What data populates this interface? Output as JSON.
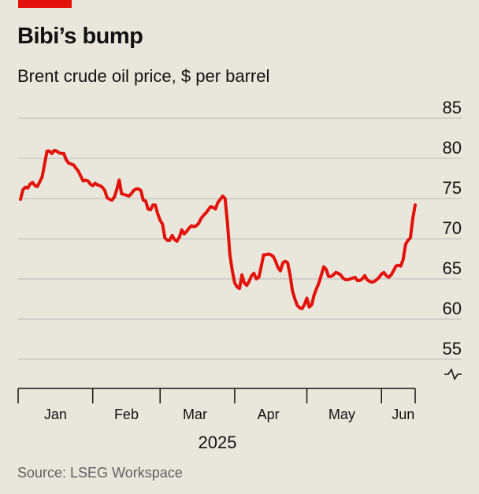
{
  "title": "Bibi’s bump",
  "subtitle": "Brent crude oil price, $ per barrel",
  "source": "Source: LSEG Workspace",
  "colors": {
    "line": "#e3120b",
    "accent": "#e3120b",
    "grid": "#b7b7b7",
    "axis": "#121212",
    "background": "#e9e7dc"
  },
  "chart_data": {
    "type": "line",
    "title": "Bibi’s bump",
    "subtitle": "Brent crude oil price, $ per barrel",
    "ylim": [
      55,
      85
    ],
    "yticks": [
      55,
      60,
      65,
      70,
      75,
      80,
      85
    ],
    "ytick_labels": [
      "55",
      "60",
      "65",
      "70",
      "75",
      "80",
      "85"
    ],
    "y_axis_side": "right",
    "y_axis_break": true,
    "x_year_label": "2025",
    "x_month_labels": [
      "Jan",
      "Feb",
      "Mar",
      "Apr",
      "May",
      "Jun"
    ],
    "x_month_label_days": [
      15.5,
      45,
      73.5,
      104,
      134.5,
      160
    ],
    "x_month_tick_days": [
      0,
      31,
      59,
      90,
      120,
      151,
      165
    ],
    "grid": true,
    "series": [
      {
        "x": [
          1,
          2,
          3,
          4,
          5,
          6,
          7,
          8,
          9,
          10,
          11,
          12,
          13,
          14,
          15,
          16,
          17,
          18,
          19,
          20,
          21,
          22,
          23,
          24,
          25,
          26,
          27,
          28,
          29,
          30,
          31,
          32,
          33,
          34,
          35,
          36,
          37,
          38,
          39,
          40,
          41,
          42,
          43,
          44,
          45,
          46,
          47,
          48,
          49,
          50,
          51,
          52,
          53,
          54,
          55,
          56,
          57,
          58,
          59,
          60,
          61,
          62,
          63,
          64,
          65,
          66,
          67,
          68,
          69,
          70,
          71,
          72,
          73,
          74,
          75,
          76,
          77,
          78,
          79,
          80,
          81,
          82,
          83,
          84,
          85,
          86,
          87,
          88,
          89,
          90,
          91,
          92,
          93,
          94,
          95,
          96,
          97,
          98,
          99,
          100,
          101,
          102,
          103,
          104,
          105,
          106,
          107,
          108,
          109,
          110,
          111,
          112,
          113,
          114,
          115,
          116,
          117,
          118,
          119,
          120,
          121,
          122,
          123,
          124,
          125,
          126,
          127,
          128,
          129,
          130,
          131,
          132,
          133,
          134,
          135,
          136,
          137,
          138,
          139,
          140,
          141,
          142,
          143,
          144,
          145,
          146,
          147,
          148,
          149,
          150,
          151,
          152,
          153,
          154,
          155,
          156,
          157,
          158,
          159,
          160,
          161,
          162,
          163,
          164,
          165
        ],
        "y": [
          74.9,
          76.1,
          76.4,
          76.3,
          76.8,
          77.0,
          76.6,
          76.5,
          77.1,
          77.7,
          79.3,
          80.9,
          80.9,
          80.6,
          81.0,
          80.9,
          80.7,
          80.6,
          80.6,
          79.8,
          79.4,
          79.3,
          79.2,
          78.8,
          78.4,
          77.8,
          77.2,
          77.3,
          77.2,
          76.8,
          76.6,
          76.9,
          76.7,
          76.6,
          76.4,
          76.0,
          75.1,
          74.9,
          74.8,
          75.2,
          76.1,
          77.3,
          75.6,
          75.5,
          75.4,
          75.3,
          75.6,
          76.0,
          76.2,
          76.2,
          76.0,
          74.8,
          74.7,
          73.7,
          73.6,
          74.2,
          74.2,
          73.1,
          72.3,
          71.8,
          70.1,
          69.8,
          69.8,
          70.4,
          69.9,
          69.7,
          70.2,
          71.1,
          70.6,
          70.9,
          71.3,
          71.6,
          71.5,
          71.6,
          71.9,
          72.5,
          72.9,
          73.2,
          73.6,
          74.0,
          73.9,
          73.7,
          74.5,
          74.9,
          75.3,
          75.0,
          72.0,
          68.0,
          66.0,
          64.5,
          64.0,
          63.8,
          65.5,
          64.5,
          64.2,
          64.7,
          65.4,
          65.7,
          65.0,
          65.2,
          66.5,
          68.0,
          68.0,
          68.1,
          68.0,
          67.8,
          67.2,
          66.4,
          66.0,
          67.0,
          67.2,
          67.0,
          65.5,
          63.5,
          62.5,
          61.7,
          61.4,
          61.3,
          61.8,
          62.6,
          61.5,
          61.8,
          63.0,
          63.8,
          64.5,
          65.5,
          66.5,
          66.2,
          65.3,
          65.3,
          65.5,
          65.8,
          65.7,
          65.5,
          65.1,
          64.9,
          64.9,
          65.0,
          65.1,
          65.2,
          64.8,
          64.8,
          65.0,
          65.4,
          64.9,
          64.7,
          64.6,
          64.7,
          64.9,
          65.2,
          65.6,
          65.8,
          65.4,
          65.2,
          65.5,
          66.0,
          66.6,
          66.7,
          66.6,
          67.4,
          69.3,
          69.8,
          70.1,
          72.5,
          74.2
        ]
      }
    ]
  }
}
